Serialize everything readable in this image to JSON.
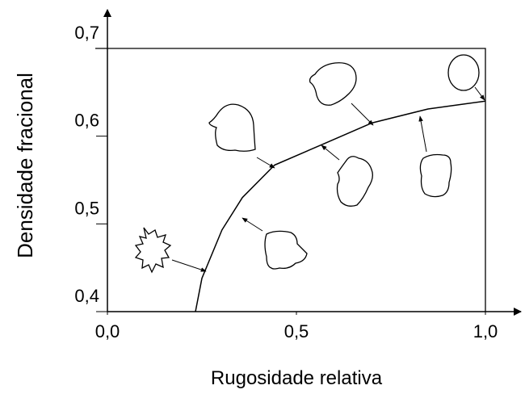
{
  "chart_data": {
    "type": "line",
    "x_label": "Rugosidade relativa",
    "y_label": "Densidade fracional",
    "x": [
      0.233,
      0.25,
      0.303,
      0.357,
      0.442,
      0.571,
      0.699,
      0.848,
      1.0
    ],
    "values": [
      0.4,
      0.438,
      0.493,
      0.53,
      0.567,
      0.591,
      0.615,
      0.631,
      0.64
    ],
    "color": "#000000",
    "xlim": [
      0,
      1
    ],
    "ylim": [
      0.4,
      0.7
    ],
    "xticks": [
      {
        "value": 0,
        "label": "0,0"
      },
      {
        "value": 0.5,
        "label": "0,5"
      },
      {
        "value": 1,
        "label": "1,0"
      }
    ],
    "yticks": [
      {
        "value": 0.4,
        "label": "0,4"
      },
      {
        "value": 0.5,
        "label": "0,5"
      },
      {
        "value": 0.6,
        "label": "0,6"
      },
      {
        "value": 0.7,
        "label": "0,7"
      }
    ],
    "grid": false
  }
}
